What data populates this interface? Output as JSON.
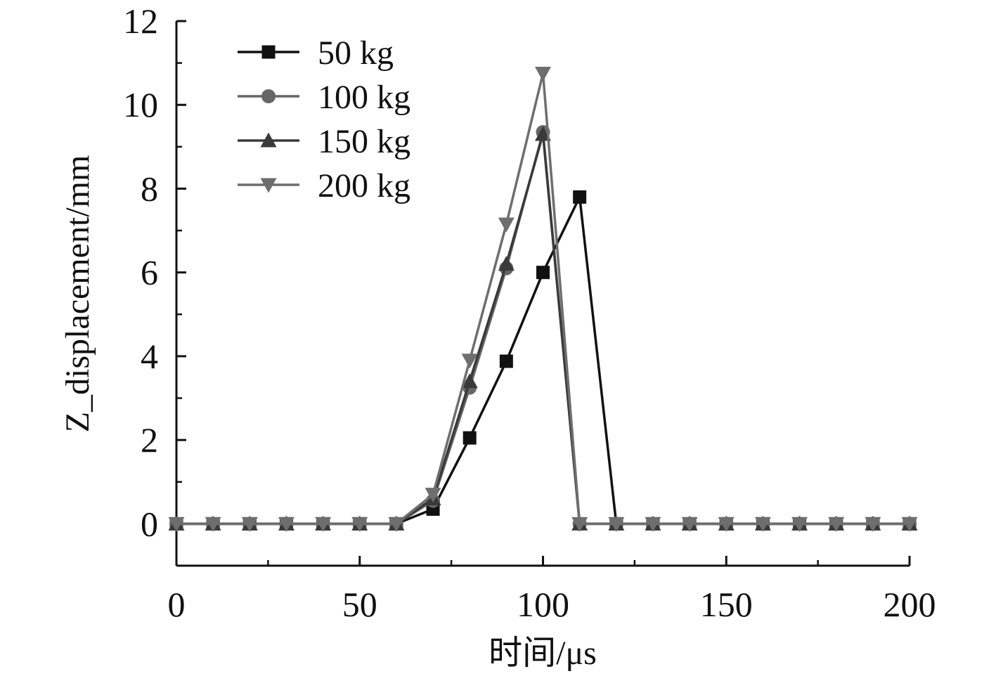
{
  "chart_data": {
    "type": "line",
    "title": "",
    "xlabel": "时间/μs",
    "ylabel": "Z_displacement/mm",
    "xlim": [
      0,
      200
    ],
    "ylim": [
      -1,
      12
    ],
    "x_ticks": [
      0,
      50,
      100,
      150,
      200
    ],
    "y_ticks": [
      0,
      2,
      4,
      6,
      8,
      10,
      12
    ],
    "grid": false,
    "legend_position": "top-left",
    "x": [
      0,
      10,
      20,
      30,
      40,
      50,
      60,
      70,
      80,
      90,
      100,
      110,
      120,
      130,
      140,
      150,
      160,
      170,
      180,
      190,
      200
    ],
    "series": [
      {
        "name": "50 kg",
        "marker": "square",
        "color": "#111111",
        "values": [
          0,
          0,
          0,
          0,
          0,
          0,
          0,
          0.35,
          2.05,
          3.88,
          6.0,
          7.8,
          0,
          0,
          0,
          0,
          0,
          0,
          0,
          0,
          0
        ]
      },
      {
        "name": "100 kg",
        "marker": "circle",
        "color": "#666666",
        "values": [
          0,
          0,
          0,
          0,
          0,
          0,
          0,
          0.55,
          3.25,
          6.1,
          9.35,
          0,
          0,
          0,
          0,
          0,
          0,
          0,
          0,
          0,
          0
        ]
      },
      {
        "name": "150 kg",
        "marker": "triangle-up",
        "color": "#3a3a3a",
        "values": [
          0,
          0,
          0,
          0,
          0,
          0,
          0,
          0.6,
          3.4,
          6.2,
          9.3,
          0,
          0,
          0,
          0,
          0,
          0,
          0,
          0,
          0,
          0
        ]
      },
      {
        "name": "200 kg",
        "marker": "triangle-down",
        "color": "#6e6e6e",
        "values": [
          0,
          0,
          0,
          0,
          0,
          0,
          0,
          0.7,
          3.9,
          7.15,
          10.75,
          0,
          0,
          0,
          0,
          0,
          0,
          0,
          0,
          0,
          0
        ]
      }
    ]
  }
}
